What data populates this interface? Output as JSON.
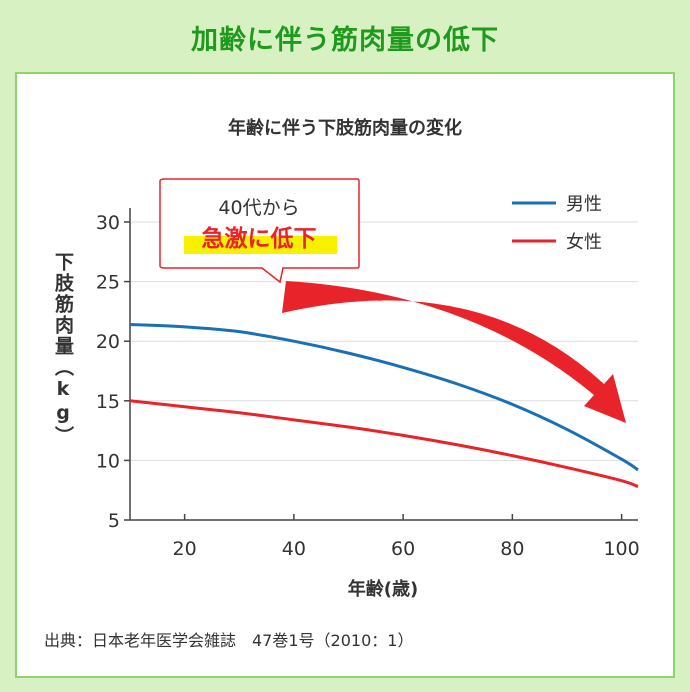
{
  "page_title": "加齢に伴う筋肉量の低下",
  "source_note": "出典：日本老年医学会雑誌　47巻1号（2010：1）",
  "callout": {
    "line1": "40代から",
    "line2": "急激に低下"
  },
  "chart_data": {
    "type": "line",
    "title": "年齢に伴う下肢筋肉量の変化",
    "xlabel": "年齢(歳)",
    "ylabel": "下肢筋肉量（kg）",
    "xlim": [
      10,
      103
    ],
    "ylim": [
      5,
      31
    ],
    "x_ticks": [
      20,
      40,
      60,
      80,
      100
    ],
    "y_ticks": [
      5,
      10,
      15,
      20,
      25,
      30
    ],
    "grid": true,
    "legend_position": "top-right",
    "series": [
      {
        "name": "男性",
        "color": "#1a6fb5",
        "points": [
          [
            10,
            21.4
          ],
          [
            20,
            21.2
          ],
          [
            30,
            20.8
          ],
          [
            40,
            20.0
          ],
          [
            50,
            19.0
          ],
          [
            60,
            17.8
          ],
          [
            70,
            16.4
          ],
          [
            80,
            14.7
          ],
          [
            90,
            12.6
          ],
          [
            100,
            10.1
          ],
          [
            103,
            9.2
          ]
        ]
      },
      {
        "name": "女性",
        "color": "#e8232a",
        "points": [
          [
            10,
            15.0
          ],
          [
            20,
            14.5
          ],
          [
            30,
            14.0
          ],
          [
            40,
            13.4
          ],
          [
            50,
            12.8
          ],
          [
            60,
            12.1
          ],
          [
            70,
            11.3
          ],
          [
            80,
            10.4
          ],
          [
            90,
            9.4
          ],
          [
            100,
            8.3
          ],
          [
            103,
            7.8
          ]
        ]
      }
    ]
  }
}
